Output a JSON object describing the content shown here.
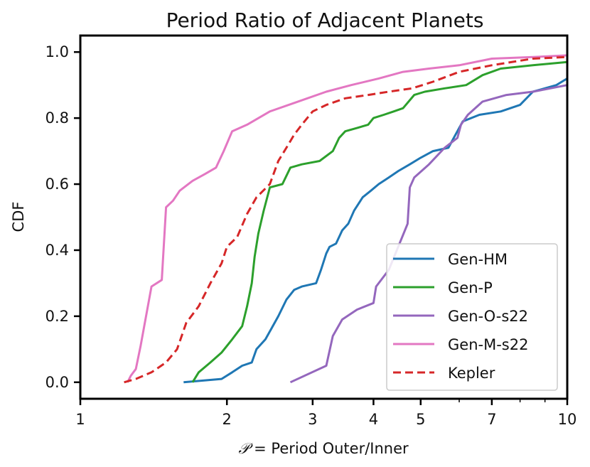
{
  "chart_data": {
    "type": "line",
    "title": "Period Ratio of Adjacent Planets",
    "xlabel_script": "𝒫",
    "xlabel_rest": " = Period Outer/Inner",
    "ylabel": "CDF",
    "xscale": "log",
    "xlim": [
      1,
      10
    ],
    "ylim": [
      -0.05,
      1.05
    ],
    "xticks": [
      1,
      2,
      3,
      4,
      5,
      7,
      10
    ],
    "xtick_labels": [
      "1",
      "2",
      "3",
      "4",
      "5",
      "7",
      "10"
    ],
    "yticks": [
      0.0,
      0.2,
      0.4,
      0.6,
      0.8,
      1.0
    ],
    "ytick_labels": [
      "0.0",
      "0.2",
      "0.4",
      "0.6",
      "0.8",
      "1.0"
    ],
    "grid": false,
    "legend_position": "lower-right",
    "series": [
      {
        "name": "Gen-HM",
        "color": "#1f77b4",
        "dashed": false,
        "points": [
          [
            1.63,
            0.0
          ],
          [
            1.95,
            0.01
          ],
          [
            2.05,
            0.03
          ],
          [
            2.15,
            0.05
          ],
          [
            2.25,
            0.06
          ],
          [
            2.3,
            0.1
          ],
          [
            2.4,
            0.13
          ],
          [
            2.55,
            0.2
          ],
          [
            2.65,
            0.25
          ],
          [
            2.75,
            0.28
          ],
          [
            2.85,
            0.29
          ],
          [
            3.05,
            0.3
          ],
          [
            3.12,
            0.34
          ],
          [
            3.2,
            0.39
          ],
          [
            3.25,
            0.41
          ],
          [
            3.35,
            0.42
          ],
          [
            3.45,
            0.46
          ],
          [
            3.55,
            0.48
          ],
          [
            3.65,
            0.52
          ],
          [
            3.8,
            0.56
          ],
          [
            3.95,
            0.58
          ],
          [
            4.1,
            0.6
          ],
          [
            4.3,
            0.62
          ],
          [
            4.5,
            0.64
          ],
          [
            4.75,
            0.66
          ],
          [
            5.0,
            0.68
          ],
          [
            5.3,
            0.7
          ],
          [
            5.7,
            0.71
          ],
          [
            6.1,
            0.79
          ],
          [
            6.6,
            0.81
          ],
          [
            7.3,
            0.82
          ],
          [
            8.0,
            0.84
          ],
          [
            8.5,
            0.88
          ],
          [
            9.5,
            0.9
          ],
          [
            10.0,
            0.92
          ]
        ]
      },
      {
        "name": "Gen-P",
        "color": "#2ca02c",
        "dashed": false,
        "points": [
          [
            1.7,
            0.0
          ],
          [
            1.75,
            0.03
          ],
          [
            1.85,
            0.06
          ],
          [
            1.95,
            0.09
          ],
          [
            2.05,
            0.13
          ],
          [
            2.15,
            0.17
          ],
          [
            2.2,
            0.23
          ],
          [
            2.25,
            0.3
          ],
          [
            2.28,
            0.38
          ],
          [
            2.32,
            0.45
          ],
          [
            2.38,
            0.52
          ],
          [
            2.45,
            0.59
          ],
          [
            2.6,
            0.6
          ],
          [
            2.7,
            0.65
          ],
          [
            2.85,
            0.66
          ],
          [
            3.1,
            0.67
          ],
          [
            3.3,
            0.7
          ],
          [
            3.4,
            0.74
          ],
          [
            3.5,
            0.76
          ],
          [
            3.7,
            0.77
          ],
          [
            3.9,
            0.78
          ],
          [
            4.0,
            0.8
          ],
          [
            4.2,
            0.81
          ],
          [
            4.4,
            0.82
          ],
          [
            4.6,
            0.83
          ],
          [
            4.85,
            0.87
          ],
          [
            5.1,
            0.88
          ],
          [
            5.6,
            0.89
          ],
          [
            6.2,
            0.9
          ],
          [
            6.7,
            0.93
          ],
          [
            7.3,
            0.95
          ],
          [
            8.5,
            0.96
          ],
          [
            10.0,
            0.97
          ]
        ]
      },
      {
        "name": "Gen-O-s22",
        "color": "#9467bd",
        "dashed": false,
        "points": [
          [
            2.7,
            0.0
          ],
          [
            3.2,
            0.05
          ],
          [
            3.3,
            0.14
          ],
          [
            3.45,
            0.19
          ],
          [
            3.7,
            0.22
          ],
          [
            4.0,
            0.24
          ],
          [
            4.05,
            0.29
          ],
          [
            4.3,
            0.34
          ],
          [
            4.7,
            0.48
          ],
          [
            4.75,
            0.59
          ],
          [
            4.85,
            0.62
          ],
          [
            5.2,
            0.66
          ],
          [
            5.6,
            0.71
          ],
          [
            5.95,
            0.74
          ],
          [
            6.05,
            0.78
          ],
          [
            6.25,
            0.81
          ],
          [
            6.7,
            0.85
          ],
          [
            7.5,
            0.87
          ],
          [
            8.5,
            0.88
          ],
          [
            10.0,
            0.9
          ]
        ]
      },
      {
        "name": "Gen-M-s22",
        "color": "#e377c2",
        "dashed": false,
        "points": [
          [
            1.25,
            0.0
          ],
          [
            1.27,
            0.02
          ],
          [
            1.3,
            0.04
          ],
          [
            1.33,
            0.11
          ],
          [
            1.4,
            0.29
          ],
          [
            1.47,
            0.31
          ],
          [
            1.5,
            0.53
          ],
          [
            1.55,
            0.55
          ],
          [
            1.6,
            0.58
          ],
          [
            1.7,
            0.61
          ],
          [
            1.8,
            0.63
          ],
          [
            1.9,
            0.65
          ],
          [
            1.97,
            0.7
          ],
          [
            2.05,
            0.76
          ],
          [
            2.2,
            0.78
          ],
          [
            2.45,
            0.82
          ],
          [
            2.8,
            0.85
          ],
          [
            3.2,
            0.88
          ],
          [
            3.6,
            0.9
          ],
          [
            4.1,
            0.92
          ],
          [
            4.6,
            0.94
          ],
          [
            5.2,
            0.95
          ],
          [
            6.0,
            0.96
          ],
          [
            7.0,
            0.98
          ],
          [
            8.5,
            0.985
          ],
          [
            10.0,
            0.99
          ]
        ]
      },
      {
        "name": "Kepler",
        "color": "#d62728",
        "dashed": true,
        "points": [
          [
            1.23,
            0.0
          ],
          [
            1.3,
            0.01
          ],
          [
            1.4,
            0.03
          ],
          [
            1.5,
            0.06
          ],
          [
            1.58,
            0.1
          ],
          [
            1.65,
            0.18
          ],
          [
            1.75,
            0.23
          ],
          [
            1.85,
            0.3
          ],
          [
            1.95,
            0.36
          ],
          [
            2.0,
            0.41
          ],
          [
            2.1,
            0.44
          ],
          [
            2.2,
            0.51
          ],
          [
            2.3,
            0.56
          ],
          [
            2.45,
            0.6
          ],
          [
            2.55,
            0.67
          ],
          [
            2.65,
            0.71
          ],
          [
            2.75,
            0.75
          ],
          [
            2.85,
            0.78
          ],
          [
            3.0,
            0.82
          ],
          [
            3.2,
            0.84
          ],
          [
            3.5,
            0.86
          ],
          [
            3.9,
            0.87
          ],
          [
            4.3,
            0.88
          ],
          [
            4.8,
            0.89
          ],
          [
            5.3,
            0.91
          ],
          [
            6.0,
            0.94
          ],
          [
            7.0,
            0.96
          ],
          [
            8.5,
            0.98
          ],
          [
            10.0,
            0.985
          ]
        ]
      }
    ]
  }
}
